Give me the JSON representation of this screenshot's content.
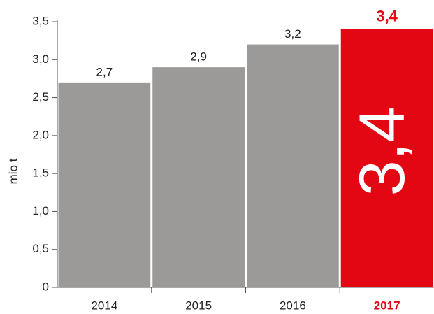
{
  "chart_data": {
    "type": "bar",
    "y_label": "mio t",
    "categories": [
      "2014",
      "2015",
      "2016",
      "2017"
    ],
    "values": [
      2.7,
      2.9,
      3.2,
      3.4
    ],
    "value_labels": [
      "2,7",
      "2,9",
      "3,2",
      "3,4"
    ],
    "colors": [
      "#9b9a98",
      "#9b9a98",
      "#9b9a98",
      "#e30613"
    ],
    "ylim": [
      0,
      3.5
    ],
    "yticks": [
      0,
      {
        "value": 0.5,
        "label": "0,5"
      },
      {
        "value": 1,
        "label": "1,0"
      },
      {
        "value": 1.5,
        "label": "1,5"
      },
      {
        "value": 2,
        "label": "2,0"
      },
      {
        "value": 2.5,
        "label": "2,5"
      },
      {
        "value": 3,
        "label": "3,0"
      },
      {
        "value": 3.5,
        "label": "3,5"
      }
    ]
  }
}
